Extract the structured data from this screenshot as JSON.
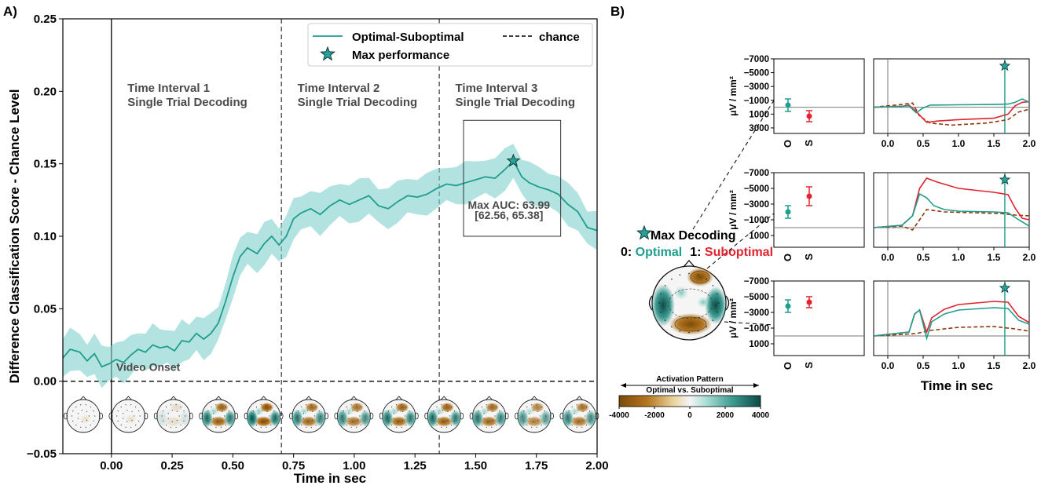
{
  "panel_a_letter": "A)",
  "panel_b_letter": "B)",
  "colors": {
    "teal": "#1f9e8e",
    "teal_fill": "#7fd1cc",
    "red": "#e0242f",
    "brown": "#8b3a0a"
  },
  "chart_data": [
    {
      "type": "line",
      "id": "panel-a",
      "xlabel": "Time in sec",
      "ylabel": "Difference Classification Score - Chance Level",
      "xlim": [
        -0.2,
        2.0
      ],
      "ylim": [
        -0.05,
        0.25
      ],
      "xticks": [
        "0.00",
        "0.25",
        "0.50",
        "0.75",
        "1.00",
        "1.25",
        "1.50",
        "1.75",
        "2.00"
      ],
      "yticks": [
        "−0.05",
        "0.00",
        "0.05",
        "0.10",
        "0.15",
        "0.20",
        "0.25"
      ],
      "series": [
        {
          "name": "Optimal-Suboptimal",
          "x": [
            -0.2,
            -0.17,
            -0.13,
            -0.1,
            -0.07,
            -0.04,
            -0.01,
            0.02,
            0.05,
            0.08,
            0.11,
            0.14,
            0.17,
            0.2,
            0.23,
            0.26,
            0.29,
            0.32,
            0.35,
            0.38,
            0.41,
            0.44,
            0.47,
            0.5,
            0.53,
            0.56,
            0.6,
            0.63,
            0.66,
            0.69,
            0.72,
            0.75,
            0.78,
            0.82,
            0.86,
            0.9,
            0.94,
            0.98,
            1.02,
            1.06,
            1.1,
            1.14,
            1.18,
            1.22,
            1.26,
            1.3,
            1.34,
            1.38,
            1.42,
            1.46,
            1.5,
            1.54,
            1.58,
            1.62,
            1.655,
            1.69,
            1.72,
            1.76,
            1.8,
            1.84,
            1.88,
            1.92,
            1.96,
            2.0
          ],
          "values": [
            0.016,
            0.022,
            0.02,
            0.014,
            0.019,
            0.01,
            0.012,
            0.015,
            0.013,
            0.018,
            0.022,
            0.02,
            0.025,
            0.023,
            0.024,
            0.021,
            0.028,
            0.027,
            0.033,
            0.029,
            0.033,
            0.04,
            0.055,
            0.072,
            0.086,
            0.092,
            0.088,
            0.095,
            0.1,
            0.094,
            0.1,
            0.112,
            0.116,
            0.119,
            0.115,
            0.121,
            0.125,
            0.122,
            0.125,
            0.128,
            0.121,
            0.119,
            0.124,
            0.128,
            0.127,
            0.129,
            0.133,
            0.136,
            0.135,
            0.137,
            0.139,
            0.141,
            0.14,
            0.146,
            0.152,
            0.141,
            0.137,
            0.134,
            0.132,
            0.129,
            0.122,
            0.117,
            0.106,
            0.104
          ]
        }
      ],
      "ci_halfwidth": 0.013,
      "max_marker": {
        "x": 1.655,
        "y": 0.152,
        "label": "Max performance"
      },
      "chance_level": 0.0,
      "chance_label": "chance",
      "onset_x": 0.0,
      "interval_lines_x": [
        0.7,
        1.35
      ],
      "video_onset_label": "Video Onset",
      "intervals": [
        {
          "line1": "Time Interval 1",
          "line2": "Single Trial Decoding",
          "x": 0.05
        },
        {
          "line1": "Time Interval 2",
          "line2": "Single Trial Decoding",
          "x": 0.75
        },
        {
          "line1": "Time Interval 3",
          "line2": "Single Trial Decoding",
          "x": 1.4
        }
      ],
      "max_auc": {
        "line1": "Max AUC: 63.99",
        "line2": "[62.56, 65.38]"
      },
      "highlight_box_x": [
        1.45,
        1.85
      ],
      "highlight_box_y": [
        0.1,
        0.18
      ],
      "legend": [
        "Optimal-Suboptimal",
        "Max performance",
        "chance"
      ],
      "topomap_times": [
        -0.15,
        0.0,
        0.25,
        0.4,
        0.55,
        0.7,
        0.85,
        1.0,
        1.15,
        1.3,
        1.45,
        1.6,
        1.75
      ]
    },
    {
      "type": "line",
      "id": "panel-b",
      "xlabel": "Time in sec",
      "ylabel": "μV / mm²",
      "xlim": [
        -0.2,
        2.0
      ],
      "xticks": [
        "0.0",
        "0.5",
        "1.0",
        "1.5",
        "2.0"
      ],
      "yticks_top": [
        "−7000",
        "−5000",
        "−3000",
        "−1000",
        "1000",
        "3000"
      ],
      "yticks_other": [
        "−7000",
        "−5000",
        "−3000",
        "−1000",
        "1000"
      ],
      "ylim_top": [
        3800,
        -7000
      ],
      "ylim_other": [
        2500,
        -7000
      ],
      "marker_x": 1.655,
      "cats": [
        "O",
        "S"
      ],
      "rows": [
        {
          "points": [
            {
              "mean": -300,
              "err": 900
            },
            {
              "mean": 1300,
              "err": 800
            }
          ],
          "optimal": [
            [
              -0.2,
              0
            ],
            [
              0.1,
              -100
            ],
            [
              0.3,
              -200
            ],
            [
              0.4,
              800
            ],
            [
              0.5,
              100
            ],
            [
              0.6,
              -300
            ],
            [
              1.0,
              -350
            ],
            [
              1.5,
              -400
            ],
            [
              1.7,
              -450
            ],
            [
              1.8,
              -700
            ],
            [
              1.9,
              -1200
            ],
            [
              2.0,
              -700
            ]
          ],
          "suboptimal": [
            [
              -0.2,
              0
            ],
            [
              0.2,
              -100
            ],
            [
              0.3,
              -300
            ],
            [
              0.4,
              600
            ],
            [
              0.55,
              2200
            ],
            [
              0.7,
              2000
            ],
            [
              1.0,
              1800
            ],
            [
              1.5,
              1600
            ],
            [
              1.7,
              1000
            ],
            [
              1.8,
              -200
            ],
            [
              1.9,
              -700
            ],
            [
              2.0,
              -800
            ]
          ],
          "chance": [
            [
              -0.2,
              0
            ],
            [
              0.2,
              -400
            ],
            [
              0.35,
              -600
            ],
            [
              0.45,
              1300
            ],
            [
              0.6,
              2300
            ],
            [
              0.9,
              2600
            ],
            [
              1.4,
              2300
            ],
            [
              1.7,
              1800
            ],
            [
              1.85,
              700
            ],
            [
              2.0,
              300
            ]
          ]
        },
        {
          "points": [
            {
              "mean": -2000,
              "err": 800
            },
            {
              "mean": -4000,
              "err": 1200
            }
          ],
          "optimal": [
            [
              -0.2,
              0
            ],
            [
              0.2,
              -300
            ],
            [
              0.35,
              -1500
            ],
            [
              0.45,
              -4300
            ],
            [
              0.55,
              -3800
            ],
            [
              0.65,
              -2800
            ],
            [
              0.8,
              -2300
            ],
            [
              1.0,
              -2100
            ],
            [
              1.5,
              -2000
            ],
            [
              1.7,
              -1900
            ],
            [
              1.85,
              -1000
            ],
            [
              2.0,
              -200
            ]
          ],
          "suboptimal": [
            [
              -0.2,
              0
            ],
            [
              0.2,
              -300
            ],
            [
              0.35,
              -1500
            ],
            [
              0.45,
              -5000
            ],
            [
              0.55,
              -6300
            ],
            [
              0.7,
              -5800
            ],
            [
              1.0,
              -5000
            ],
            [
              1.5,
              -4500
            ],
            [
              1.7,
              -4200
            ],
            [
              1.8,
              -2500
            ],
            [
              1.9,
              -1200
            ],
            [
              2.0,
              -1000
            ]
          ],
          "chance": [
            [
              -0.2,
              0
            ],
            [
              0.2,
              -200
            ],
            [
              0.35,
              300
            ],
            [
              0.45,
              -1000
            ],
            [
              0.55,
              -2300
            ],
            [
              0.8,
              -2000
            ],
            [
              1.2,
              -1900
            ],
            [
              1.6,
              -1800
            ],
            [
              1.8,
              -1600
            ],
            [
              2.0,
              -1500
            ]
          ]
        },
        {
          "points": [
            {
              "mean": -3800,
              "err": 800
            },
            {
              "mean": -4300,
              "err": 700
            }
          ],
          "optimal": [
            [
              -0.2,
              0
            ],
            [
              0.3,
              -500
            ],
            [
              0.38,
              -2800
            ],
            [
              0.45,
              -3300
            ],
            [
              0.55,
              300
            ],
            [
              0.62,
              -1800
            ],
            [
              0.8,
              -2800
            ],
            [
              1.0,
              -3300
            ],
            [
              1.5,
              -3600
            ],
            [
              1.7,
              -3500
            ],
            [
              1.85,
              -2000
            ],
            [
              2.0,
              -1500
            ]
          ],
          "suboptimal": [
            [
              -0.2,
              0
            ],
            [
              0.3,
              -500
            ],
            [
              0.38,
              -2800
            ],
            [
              0.45,
              -3300
            ],
            [
              0.55,
              -500
            ],
            [
              0.62,
              -2300
            ],
            [
              0.8,
              -3400
            ],
            [
              1.0,
              -4000
            ],
            [
              1.5,
              -4400
            ],
            [
              1.7,
              -4300
            ],
            [
              1.85,
              -2500
            ],
            [
              2.0,
              -1700
            ]
          ],
          "chance": [
            [
              -0.2,
              0
            ],
            [
              0.4,
              -300
            ],
            [
              0.6,
              -700
            ],
            [
              1.0,
              -1100
            ],
            [
              1.5,
              -1200
            ],
            [
              1.8,
              -900
            ],
            [
              2.0,
              -600
            ]
          ]
        }
      ]
    }
  ],
  "panel_b": {
    "max_decoding_label": "Max Decoding",
    "class0_prefix": "0: ",
    "class0_name": "Optimal",
    "class1_prefix": "1: ",
    "class1_name": "Suboptimal",
    "colorbar": {
      "title1": "Activation Pattern",
      "title2": "Optimal vs. Suboptimal",
      "ticks": [
        "-4000",
        "-2000",
        "0",
        "2000",
        "4000"
      ],
      "range": [
        -4000,
        4000
      ]
    }
  }
}
